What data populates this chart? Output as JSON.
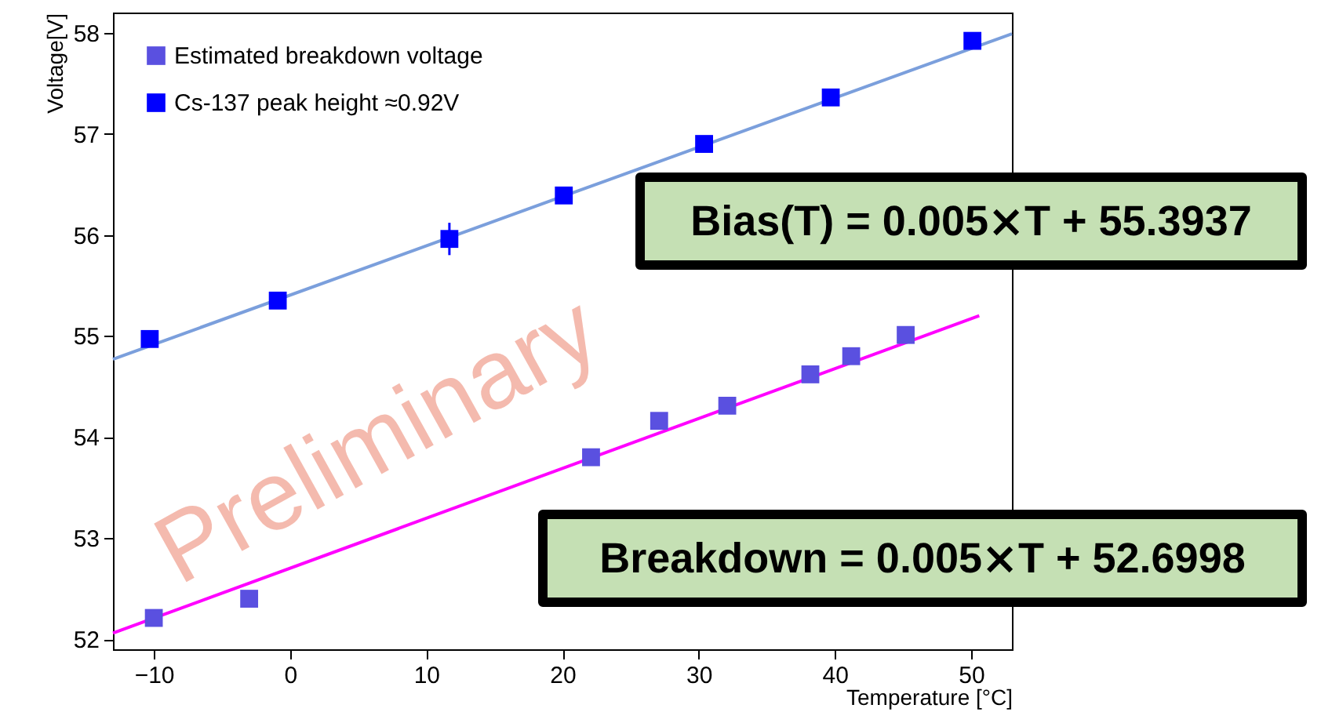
{
  "chart_data": {
    "type": "scatter",
    "xlabel": "Temperature [°C]",
    "ylabel": "Voltage[V]",
    "xlim": [
      -13,
      53
    ],
    "ylim": [
      51.9,
      58.2
    ],
    "xticks": [
      -10,
      0,
      10,
      20,
      30,
      40,
      50
    ],
    "yticks": [
      52,
      53,
      54,
      55,
      56,
      57,
      58
    ],
    "grid": false,
    "legend": "top left",
    "series": [
      {
        "name": "Estimated breakdown voltage",
        "color": "#5a50e0",
        "marker": "square",
        "x": [
          -10,
          -3,
          22.1,
          27.1,
          32.1,
          38.2,
          41.2,
          45.2
        ],
        "values": [
          52.21,
          52.4,
          53.8,
          54.16,
          54.31,
          54.62,
          54.8,
          55.01
        ]
      },
      {
        "name": "Cs-137 peak height ≈0.92V",
        "color": "#0000ff",
        "marker": "square",
        "x": [
          -10.3,
          -0.9,
          11.7,
          20.1,
          30.4,
          39.7,
          50.1
        ],
        "values": [
          54.97,
          55.35,
          55.96,
          56.39,
          56.9,
          57.36,
          57.92
        ],
        "errors": [
          null,
          null,
          0.16,
          null,
          null,
          null,
          null
        ]
      },
      {
        "type": "line",
        "color": "#ff00ff",
        "x": [
          -13,
          50.6
        ],
        "values": [
          52.06,
          55.2
        ]
      },
      {
        "type": "line",
        "color": "#7b9fdc",
        "x": [
          -13,
          53
        ],
        "values": [
          54.77,
          57.99
        ]
      }
    ],
    "annotations": [
      "Preliminary",
      "Bias(T) = 0.005⨯T  + 55.3937",
      "Breakdown = 0.005⨯T  + 52.6998"
    ]
  }
}
